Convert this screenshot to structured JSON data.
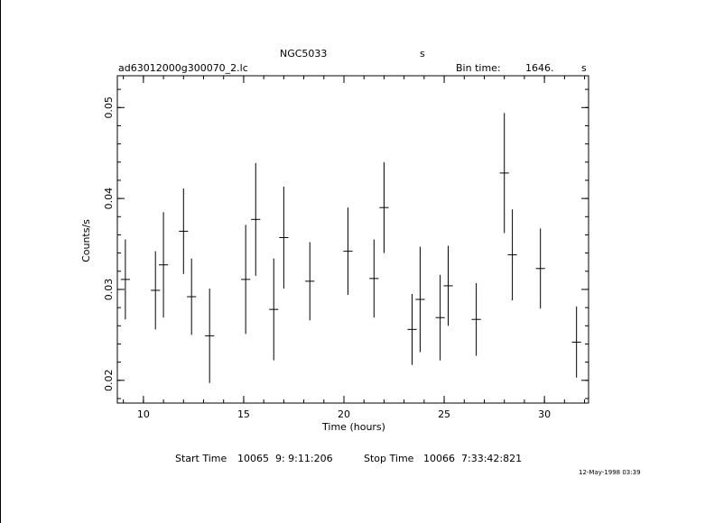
{
  "header": {
    "object_name": "NGC5033",
    "object_unit": "s",
    "file_name": "ad63012000g300070_2.lc",
    "bin_label": "Bin time:",
    "bin_value": "1646.",
    "bin_unit": "s"
  },
  "footer": {
    "start_label": "Start Time",
    "start_value": "10065  9: 9:11:206",
    "stop_label": "Stop Time",
    "stop_value": "10066  7:33:42:821",
    "timestamp": "12-May-1998 03:39"
  },
  "chart_data": {
    "type": "scatter",
    "title": "",
    "xlabel": "Time (hours)",
    "ylabel": "Counts/s",
    "xlim": [
      8.7,
      32.2
    ],
    "ylim": [
      0.0175,
      0.0535
    ],
    "x_ticks": [
      10,
      15,
      20,
      25,
      30
    ],
    "x_tick_labels": [
      "10",
      "15",
      "20",
      "25",
      "30"
    ],
    "y_ticks": [
      0.02,
      0.03,
      0.04,
      0.05
    ],
    "y_tick_labels": [
      "0.02",
      "0.03",
      "0.04",
      "0.05"
    ],
    "x_minor_step": 1,
    "y_minor_step": 0.002,
    "grid": false,
    "points": [
      {
        "x": 9.1,
        "y": 0.0311,
        "err": 0.0044
      },
      {
        "x": 10.6,
        "y": 0.0299,
        "err": 0.0043
      },
      {
        "x": 11.0,
        "y": 0.0327,
        "err": 0.0058
      },
      {
        "x": 12.0,
        "y": 0.0364,
        "err": 0.0047
      },
      {
        "x": 12.4,
        "y": 0.0292,
        "err": 0.0042
      },
      {
        "x": 13.3,
        "y": 0.0249,
        "err": 0.0052
      },
      {
        "x": 15.1,
        "y": 0.0311,
        "err": 0.006
      },
      {
        "x": 15.6,
        "y": 0.0377,
        "err": 0.0062
      },
      {
        "x": 16.5,
        "y": 0.0278,
        "err": 0.0056
      },
      {
        "x": 17.0,
        "y": 0.0357,
        "err": 0.0056
      },
      {
        "x": 18.3,
        "y": 0.0309,
        "err": 0.0043
      },
      {
        "x": 20.2,
        "y": 0.0342,
        "err": 0.0048
      },
      {
        "x": 21.5,
        "y": 0.0312,
        "err": 0.0043
      },
      {
        "x": 22.0,
        "y": 0.039,
        "err": 0.005
      },
      {
        "x": 23.4,
        "y": 0.0256,
        "err": 0.0039
      },
      {
        "x": 23.8,
        "y": 0.0289,
        "err": 0.0058
      },
      {
        "x": 24.8,
        "y": 0.0269,
        "err": 0.0047
      },
      {
        "x": 25.2,
        "y": 0.0304,
        "err": 0.0044
      },
      {
        "x": 26.6,
        "y": 0.0267,
        "err": 0.004
      },
      {
        "x": 28.0,
        "y": 0.0428,
        "err": 0.0066
      },
      {
        "x": 28.4,
        "y": 0.0338,
        "err": 0.005
      },
      {
        "x": 29.8,
        "y": 0.0323,
        "err": 0.0044
      },
      {
        "x": 31.6,
        "y": 0.0242,
        "err": 0.0039
      }
    ],
    "xbin_hours": 0.4572
  }
}
